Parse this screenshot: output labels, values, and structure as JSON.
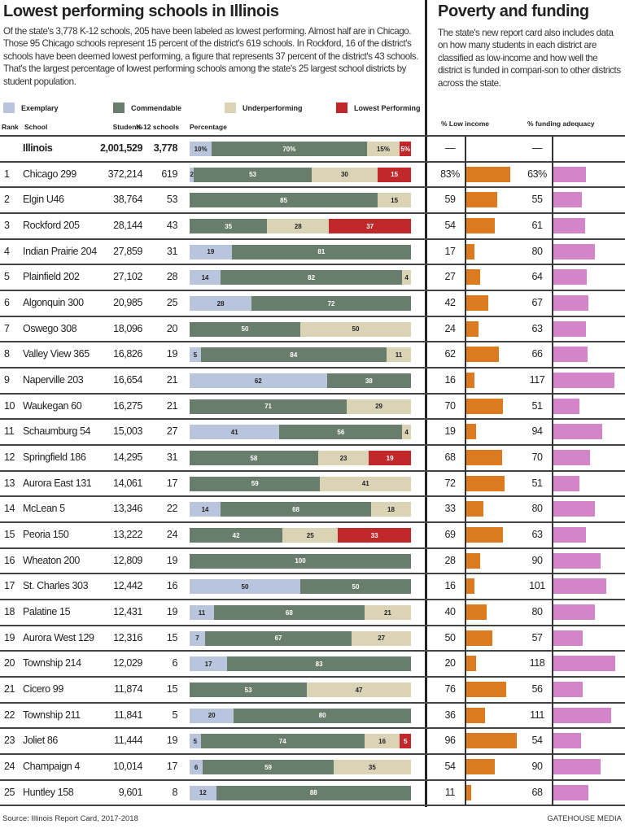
{
  "left": {
    "title": "Lowest performing schools in Illinois",
    "intro": "Of the state's 3,778 K-12 schools, 205 have been labeled as lowest performing. Almost half are in Chicago. Those 95 Chicago schools represent 15 percent of the district's 619 schools. In Rockford, 16 of the district's schools have been deemed lowest performing, a figure that represents 37 percent of the district's 43 schools. That's the largest percentage of lowest performing schools among the state's 25 largest school districts by student population."
  },
  "right": {
    "title": "Poverty and funding",
    "intro": "The state's new report card also includes data on how many students in each district are classified as low-income and how well the district is funded in compari-son to other districts across the state."
  },
  "colors": {
    "exemplary": "#b9c5dc",
    "commendable": "#687d6b",
    "underperforming": "#dad3b5",
    "lowest": "#c0282a",
    "low_income": "#dc7a1f",
    "funding": "#d485c9"
  },
  "legend": [
    "Exemplary",
    "Commendable",
    "Underperforming",
    "Lowest Performing"
  ],
  "headers": {
    "rank": "Rank",
    "school": "School",
    "students": "Students",
    "k12": "K-12 schools",
    "percentage": "Percentage",
    "low_income": "% Low income",
    "funding": "% funding adequacy"
  },
  "chart_data": {
    "type": "table",
    "series_names": [
      "Exemplary",
      "Commendable",
      "Underperforming",
      "Lowest Performing"
    ],
    "state": {
      "school": "Illinois",
      "students": "2,001,529",
      "k12": "3,778",
      "pct": [
        10,
        70,
        15,
        5
      ],
      "pct_suffix": "%",
      "low_income": "—",
      "funding": "—"
    },
    "rows": [
      {
        "rank": "1",
        "school": "Chicago 299",
        "students": "372,214",
        "k12": "619",
        "pct": [
          2,
          53,
          30,
          15
        ],
        "low_income": "83%",
        "funding": "63%"
      },
      {
        "rank": "2",
        "school": "Elgin U46",
        "students": "38,764",
        "k12": "53",
        "pct": [
          0,
          85,
          15,
          0
        ],
        "low_income": "59",
        "funding": "55"
      },
      {
        "rank": "3",
        "school": "Rockford 205",
        "students": "28,144",
        "k12": "43",
        "pct": [
          0,
          35,
          28,
          37
        ],
        "low_income": "54",
        "funding": "61"
      },
      {
        "rank": "4",
        "school": "Indian Prairie 204",
        "students": "27,859",
        "k12": "31",
        "pct": [
          19,
          81,
          0,
          0
        ],
        "low_income": "17",
        "funding": "80"
      },
      {
        "rank": "5",
        "school": "Plainfield 202",
        "students": "27,102",
        "k12": "28",
        "pct": [
          14,
          82,
          4,
          0
        ],
        "low_income": "27",
        "funding": "64"
      },
      {
        "rank": "6",
        "school": "Algonquin 300",
        "students": "20,985",
        "k12": "25",
        "pct": [
          28,
          72,
          0,
          0
        ],
        "low_income": "42",
        "funding": "67"
      },
      {
        "rank": "7",
        "school": "Oswego 308",
        "students": "18,096",
        "k12": "20",
        "pct": [
          0,
          50,
          50,
          0
        ],
        "low_income": "24",
        "funding": "63"
      },
      {
        "rank": "8",
        "school": "Valley View 365",
        "students": "16,826",
        "k12": "19",
        "pct": [
          5,
          84,
          11,
          0
        ],
        "low_income": "62",
        "funding": "66"
      },
      {
        "rank": "9",
        "school": "Naperville 203",
        "students": "16,654",
        "k12": "21",
        "pct": [
          62,
          38,
          0,
          0
        ],
        "low_income": "16",
        "funding": "117"
      },
      {
        "rank": "10",
        "school": "Waukegan 60",
        "students": "16,275",
        "k12": "21",
        "pct": [
          0,
          71,
          29,
          0
        ],
        "low_income": "70",
        "funding": "51"
      },
      {
        "rank": "11",
        "school": "Schaumburg 54",
        "students": "15,003",
        "k12": "27",
        "pct": [
          41,
          56,
          4,
          0
        ],
        "low_income": "19",
        "funding": "94"
      },
      {
        "rank": "12",
        "school": "Springfield 186",
        "students": "14,295",
        "k12": "31",
        "pct": [
          0,
          58,
          23,
          19
        ],
        "low_income": "68",
        "funding": "70"
      },
      {
        "rank": "13",
        "school": "Aurora East 131",
        "students": "14,061",
        "k12": "17",
        "pct": [
          0,
          59,
          41,
          0
        ],
        "low_income": "72",
        "funding": "51"
      },
      {
        "rank": "14",
        "school": "McLean 5",
        "students": "13,346",
        "k12": "22",
        "pct": [
          14,
          68,
          18,
          0
        ],
        "low_income": "33",
        "funding": "80"
      },
      {
        "rank": "15",
        "school": "Peoria 150",
        "students": "13,222",
        "k12": "24",
        "pct": [
          0,
          42,
          25,
          33
        ],
        "low_income": "69",
        "funding": "63"
      },
      {
        "rank": "16",
        "school": "Wheaton 200",
        "students": "12,809",
        "k12": "19",
        "pct": [
          0,
          100,
          0,
          0
        ],
        "low_income": "28",
        "funding": "90"
      },
      {
        "rank": "17",
        "school": "St. Charles 303",
        "students": "12,442",
        "k12": "16",
        "pct": [
          50,
          50,
          0,
          0
        ],
        "low_income": "16",
        "funding": "101"
      },
      {
        "rank": "18",
        "school": "Palatine 15",
        "students": "12,431",
        "k12": "19",
        "pct": [
          11,
          68,
          21,
          0
        ],
        "low_income": "40",
        "funding": "80"
      },
      {
        "rank": "19",
        "school": "Aurora West 129",
        "students": "12,316",
        "k12": "15",
        "pct": [
          7,
          67,
          27,
          0
        ],
        "low_income": "50",
        "funding": "57"
      },
      {
        "rank": "20",
        "school": "Township 214",
        "students": "12,029",
        "k12": "6",
        "pct": [
          17,
          83,
          0,
          0
        ],
        "low_income": "20",
        "funding": "118"
      },
      {
        "rank": "21",
        "school": "Cicero 99",
        "students": "11,874",
        "k12": "15",
        "pct": [
          0,
          53,
          47,
          0
        ],
        "low_income": "76",
        "funding": "56"
      },
      {
        "rank": "22",
        "school": "Township 211",
        "students": "11,841",
        "k12": "5",
        "pct": [
          20,
          80,
          0,
          0
        ],
        "low_income": "36",
        "funding": "111"
      },
      {
        "rank": "23",
        "school": "Joliet 86",
        "students": "11,444",
        "k12": "19",
        "pct": [
          5,
          74,
          16,
          5
        ],
        "low_income": "96",
        "funding": "54"
      },
      {
        "rank": "24",
        "school": "Champaign 4",
        "students": "10,014",
        "k12": "17",
        "pct": [
          6,
          59,
          35,
          0
        ],
        "low_income": "54",
        "funding": "90"
      },
      {
        "rank": "25",
        "school": "Huntley 158",
        "students": "9,601",
        "k12": "8",
        "pct": [
          12,
          88,
          0,
          0
        ],
        "low_income": "11",
        "funding": "68"
      }
    ]
  },
  "footer": {
    "source": "Source: Illinois Report Card, 2017-2018",
    "credit": "GATEHOUSE MEDIA"
  }
}
